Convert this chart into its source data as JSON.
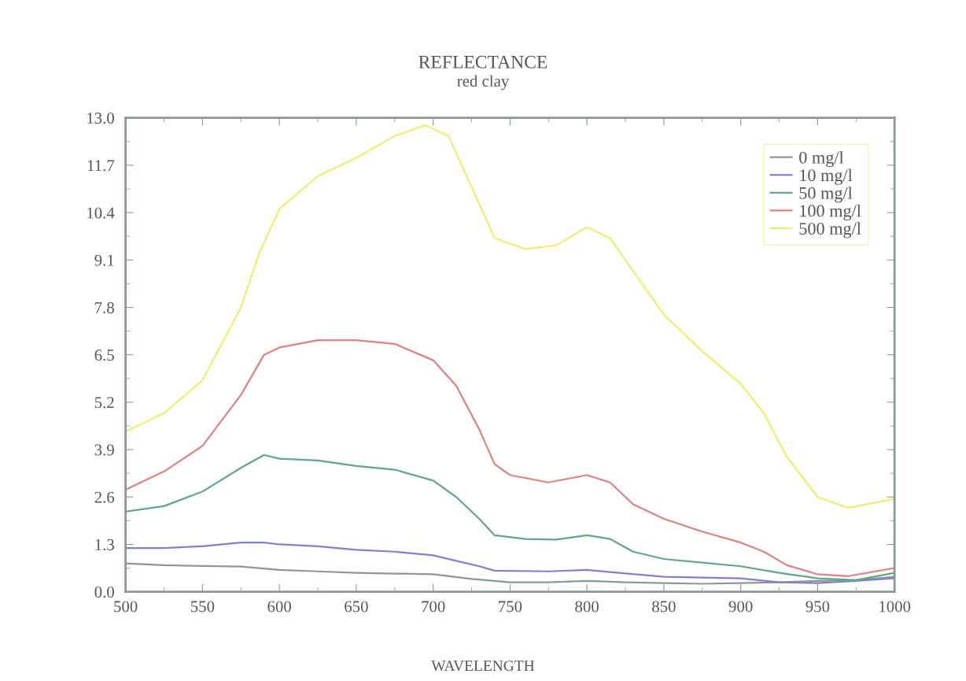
{
  "chart_data": {
    "type": "line",
    "title": "REFLECTANCE",
    "subtitle": "red clay",
    "xlabel": "WAVELENGTH",
    "xlim": [
      500,
      1000
    ],
    "xticks": [
      500,
      550,
      600,
      650,
      700,
      750,
      800,
      850,
      900,
      950,
      1000
    ],
    "ylim": [
      0,
      13
    ],
    "yticks": [
      {
        "value": 0,
        "label": "0.0"
      },
      1.3,
      2.6,
      3.9,
      5.2,
      6.5,
      7.8,
      9.1,
      10.4,
      11.7,
      {
        "value": 13,
        "label": "13.0"
      }
    ],
    "grid": false,
    "legend": "top right",
    "marker": "none",
    "line_style": "solid",
    "series": [
      {
        "name": "0 mg/l",
        "color": "#8a9a90",
        "x": [
          500,
          525,
          550,
          575,
          600,
          625,
          650,
          675,
          700,
          725,
          750,
          775,
          800,
          825,
          850,
          875,
          900,
          925,
          950,
          975,
          1000
        ],
        "values": [
          0.78,
          0.73,
          0.71,
          0.69,
          0.6,
          0.56,
          0.52,
          0.5,
          0.48,
          0.35,
          0.26,
          0.26,
          0.3,
          0.26,
          0.24,
          0.22,
          0.24,
          0.26,
          0.3,
          0.32,
          0.41
        ]
      },
      {
        "name": "10 mg/l",
        "color": "#8080d0",
        "x": [
          500,
          525,
          550,
          575,
          590,
          600,
          625,
          650,
          675,
          700,
          715,
          730,
          740,
          775,
          800,
          815,
          850,
          875,
          900,
          925,
          950,
          975,
          1000
        ],
        "values": [
          1.2,
          1.2,
          1.25,
          1.35,
          1.35,
          1.3,
          1.25,
          1.15,
          1.1,
          1.0,
          0.85,
          0.7,
          0.58,
          0.56,
          0.6,
          0.54,
          0.41,
          0.39,
          0.37,
          0.26,
          0.24,
          0.3,
          0.37
        ]
      },
      {
        "name": "50 mg/l",
        "color": "#60a880",
        "x": [
          500,
          525,
          550,
          575,
          590,
          600,
          625,
          650,
          675,
          700,
          715,
          730,
          740,
          760,
          780,
          800,
          815,
          830,
          850,
          875,
          900,
          925,
          950,
          975,
          1000
        ],
        "values": [
          2.2,
          2.35,
          2.75,
          3.4,
          3.75,
          3.65,
          3.6,
          3.45,
          3.35,
          3.05,
          2.6,
          2.0,
          1.55,
          1.45,
          1.43,
          1.55,
          1.45,
          1.1,
          0.9,
          0.8,
          0.7,
          0.52,
          0.37,
          0.32,
          0.52
        ]
      },
      {
        "name": "100 mg/l",
        "color": "#e08080",
        "x": [
          500,
          525,
          550,
          575,
          590,
          600,
          625,
          650,
          675,
          700,
          715,
          730,
          740,
          750,
          775,
          800,
          815,
          830,
          850,
          875,
          900,
          915,
          930,
          950,
          970,
          1000
        ],
        "values": [
          2.8,
          3.3,
          4.0,
          5.4,
          6.5,
          6.7,
          6.9,
          6.9,
          6.8,
          6.35,
          5.65,
          4.45,
          3.5,
          3.2,
          3.0,
          3.2,
          3.0,
          2.4,
          2.0,
          1.65,
          1.35,
          1.1,
          0.73,
          0.48,
          0.43,
          0.65
        ]
      },
      {
        "name": "500 mg/l",
        "color": "#eeee70",
        "x": [
          500,
          525,
          550,
          575,
          587,
          600,
          625,
          650,
          675,
          695,
          710,
          725,
          740,
          760,
          780,
          800,
          815,
          830,
          850,
          875,
          900,
          915,
          930,
          950,
          970,
          1000
        ],
        "values": [
          4.4,
          4.9,
          5.8,
          7.8,
          9.3,
          10.5,
          11.4,
          11.9,
          12.5,
          12.8,
          12.5,
          11.1,
          9.7,
          9.4,
          9.5,
          10.0,
          9.7,
          8.8,
          7.6,
          6.6,
          5.7,
          4.9,
          3.7,
          2.6,
          2.3,
          2.55
        ]
      }
    ]
  }
}
